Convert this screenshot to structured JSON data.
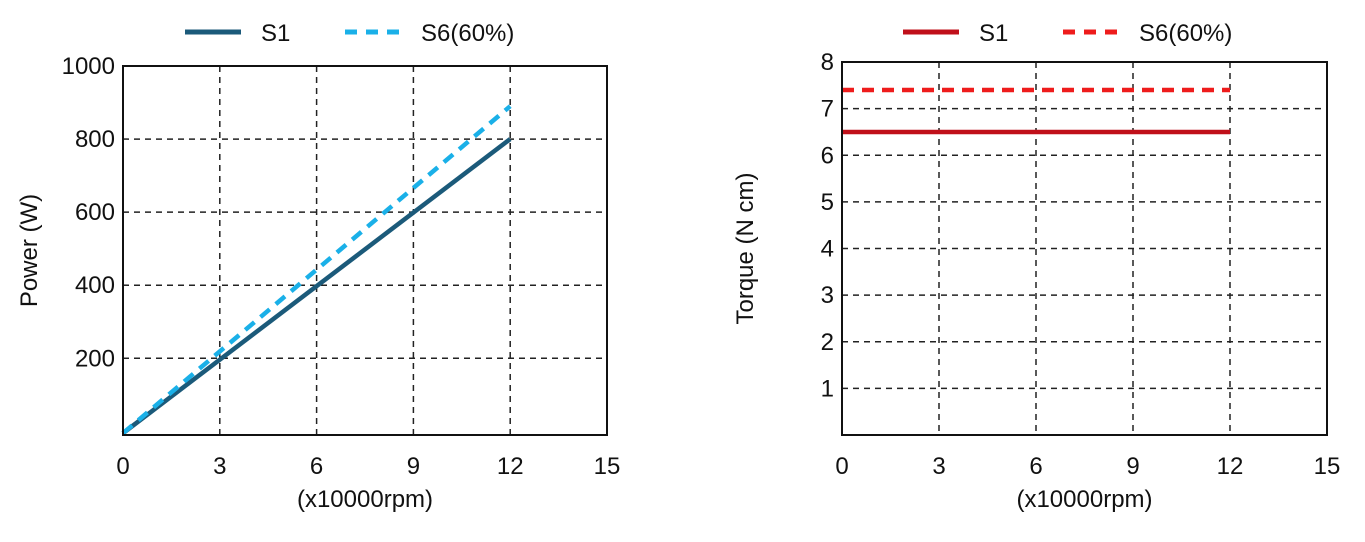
{
  "chart_data": [
    {
      "type": "line",
      "title": "",
      "xlabel": "(x10000rpm)",
      "ylabel": "Power (W)",
      "xlim": [
        0,
        15
      ],
      "ylim": [
        -10,
        1000
      ],
      "xticks": [
        0,
        3,
        6,
        9,
        12,
        15
      ],
      "yticks": [
        200,
        400,
        600,
        800,
        1000
      ],
      "grid": true,
      "legend_position": "top",
      "series": [
        {
          "name": "S1",
          "color": "#1b5a7a",
          "style": "solid",
          "x": [
            0,
            12
          ],
          "y": [
            -5,
            800
          ]
        },
        {
          "name": "S6(60%)",
          "color": "#1ab0e8",
          "style": "dashed",
          "x": [
            0,
            12
          ],
          "y": [
            -5,
            890
          ]
        }
      ]
    },
    {
      "type": "line",
      "title": "",
      "xlabel": "(x10000rpm)",
      "ylabel": "Torque  (N cm)",
      "xlim": [
        0,
        15
      ],
      "ylim": [
        0,
        8
      ],
      "xticks": [
        0,
        3,
        6,
        9,
        12,
        15
      ],
      "yticks": [
        1,
        2,
        3,
        4,
        5,
        6,
        7,
        8
      ],
      "grid": true,
      "legend_position": "top",
      "series": [
        {
          "name": "S1",
          "color": "#c0101a",
          "style": "solid",
          "x": [
            0,
            12
          ],
          "y": [
            6.5,
            6.5
          ]
        },
        {
          "name": "S6(60%)",
          "color": "#ee1c1c",
          "style": "dashed",
          "x": [
            0,
            12
          ],
          "y": [
            7.4,
            7.4
          ]
        }
      ]
    }
  ]
}
